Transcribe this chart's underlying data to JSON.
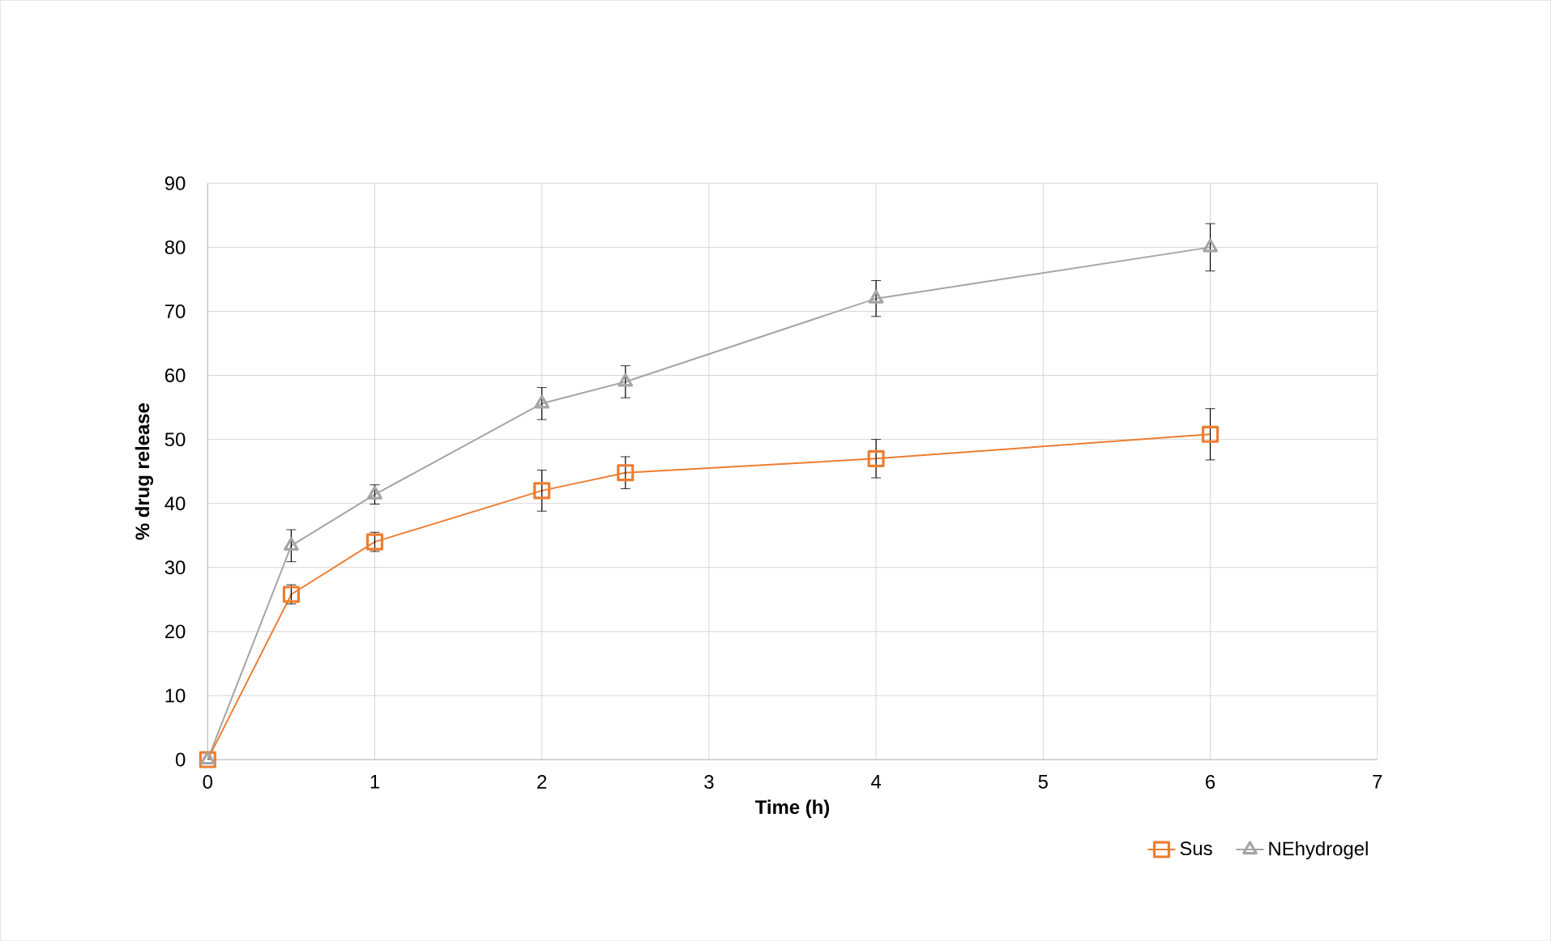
{
  "chart_data": {
    "type": "line",
    "xlabel": "Time (h)",
    "ylabel": "% drug release",
    "xlim": [
      0,
      7
    ],
    "xticks": [
      0,
      1,
      2,
      3,
      4,
      5,
      6,
      7
    ],
    "ylim": [
      0,
      90
    ],
    "yticks": [
      0,
      10,
      20,
      30,
      40,
      50,
      60,
      70,
      80,
      90
    ],
    "grid": true,
    "legend": "bottom right",
    "line_style": "solid",
    "x": [
      0,
      0.5,
      1,
      2,
      2.5,
      4,
      6
    ],
    "series": [
      {
        "name": "Sus",
        "color": "#ed7d31",
        "marker": "square",
        "values": [
          0,
          25.8,
          34,
          42,
          44.8,
          47,
          50.8
        ],
        "errors": [
          null,
          1.5,
          1.5,
          3.2,
          2.5,
          3,
          4
        ]
      },
      {
        "name": "NEhydrogel",
        "color": "#a5a5a5",
        "marker": "triangle",
        "values": [
          0,
          33.4,
          41.4,
          55.6,
          59,
          72,
          80
        ],
        "errors": [
          null,
          2.5,
          1.5,
          2.5,
          2.5,
          2.8,
          3.7
        ]
      }
    ]
  }
}
